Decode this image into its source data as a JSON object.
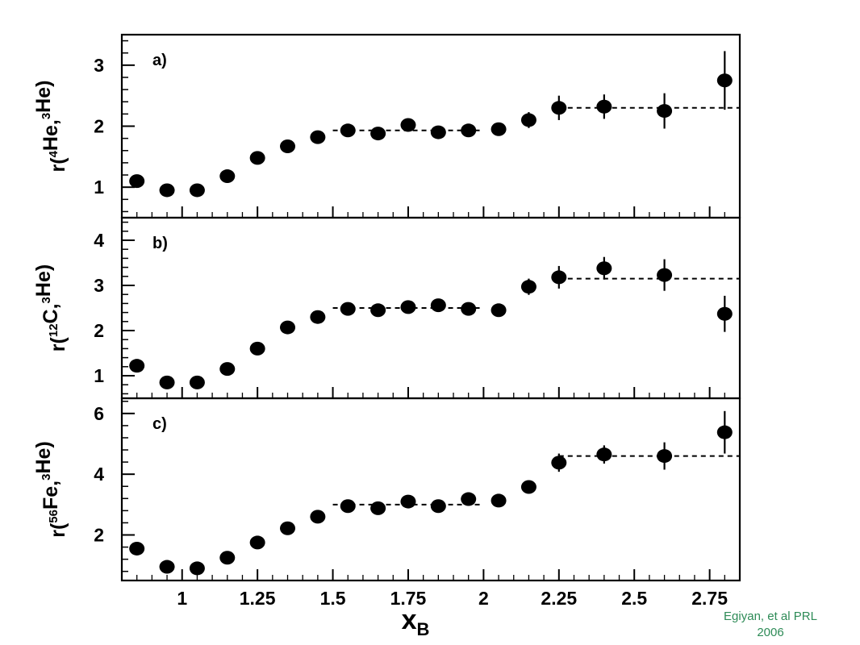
{
  "chart_data": [
    {
      "type": "scatter",
      "panel_label": "a)",
      "ylabel": {
        "prefix": "r(",
        "sup1": "4",
        "el1": "He,",
        "sup2": "3",
        "el2": "He)"
      },
      "ylim": [
        0.5,
        3.5
      ],
      "yticks": [
        1,
        2,
        3
      ],
      "xlim": [
        0.8,
        2.85
      ],
      "x": [
        0.85,
        0.95,
        1.05,
        1.15,
        1.25,
        1.35,
        1.45,
        1.55,
        1.65,
        1.75,
        1.85,
        1.95,
        2.05,
        2.15,
        2.25,
        2.4,
        2.6,
        2.8
      ],
      "y": [
        1.1,
        0.95,
        0.95,
        1.18,
        1.48,
        1.67,
        1.82,
        1.93,
        1.88,
        2.02,
        1.9,
        1.93,
        1.95,
        2.1,
        2.3,
        2.32,
        2.25,
        2.75
      ],
      "yerr": [
        0.03,
        0.03,
        0.03,
        0.03,
        0.04,
        0.04,
        0.04,
        0.05,
        0.05,
        0.06,
        0.06,
        0.06,
        0.07,
        0.13,
        0.2,
        0.2,
        0.29,
        0.48
      ],
      "fits": [
        {
          "x": [
            1.5,
            2.0
          ],
          "y": 1.93
        },
        {
          "x": [
            2.25,
            2.85
          ],
          "y": 2.3
        }
      ]
    },
    {
      "type": "scatter",
      "panel_label": "b)",
      "ylabel": {
        "prefix": "r(",
        "sup1": "12",
        "el1": "C,",
        "sup2": "3",
        "el2": "He)"
      },
      "ylim": [
        0.5,
        4.5
      ],
      "yticks": [
        1,
        2,
        3,
        4
      ],
      "xlim": [
        0.8,
        2.85
      ],
      "x": [
        0.85,
        0.95,
        1.05,
        1.15,
        1.25,
        1.35,
        1.45,
        1.55,
        1.65,
        1.75,
        1.85,
        1.95,
        2.05,
        2.15,
        2.25,
        2.4,
        2.6,
        2.8
      ],
      "y": [
        1.22,
        0.85,
        0.85,
        1.15,
        1.6,
        2.07,
        2.3,
        2.48,
        2.45,
        2.52,
        2.56,
        2.48,
        2.45,
        2.97,
        3.18,
        3.38,
        3.23,
        2.37
      ],
      "yerr": [
        0.03,
        0.03,
        0.03,
        0.04,
        0.05,
        0.05,
        0.06,
        0.06,
        0.06,
        0.07,
        0.08,
        0.08,
        0.09,
        0.18,
        0.25,
        0.25,
        0.35,
        0.4
      ],
      "fits": [
        {
          "x": [
            1.5,
            2.0
          ],
          "y": 2.5
        },
        {
          "x": [
            2.25,
            2.85
          ],
          "y": 3.15
        }
      ]
    },
    {
      "type": "scatter",
      "panel_label": "c)",
      "ylabel": {
        "prefix": "r(",
        "sup1": "56",
        "el1": "Fe,",
        "sup2": "3",
        "el2": "He)"
      },
      "ylim": [
        0.5,
        6.5
      ],
      "yticks": [
        2,
        4,
        6
      ],
      "xlim": [
        0.8,
        2.85
      ],
      "x": [
        0.85,
        0.95,
        1.05,
        1.15,
        1.25,
        1.35,
        1.45,
        1.55,
        1.65,
        1.75,
        1.85,
        1.95,
        2.05,
        2.15,
        2.25,
        2.4,
        2.6,
        2.8
      ],
      "y": [
        1.55,
        0.95,
        0.9,
        1.25,
        1.75,
        2.22,
        2.6,
        2.95,
        2.88,
        3.1,
        2.95,
        3.18,
        3.13,
        3.58,
        4.38,
        4.65,
        4.6,
        5.38
      ],
      "yerr": [
        0.05,
        0.05,
        0.05,
        0.06,
        0.07,
        0.08,
        0.09,
        0.1,
        0.1,
        0.11,
        0.12,
        0.12,
        0.13,
        0.2,
        0.3,
        0.3,
        0.45,
        0.7
      ],
      "fits": [
        {
          "x": [
            1.5,
            2.0
          ],
          "y": 3.0
        },
        {
          "x": [
            2.25,
            2.85
          ],
          "y": 4.6
        }
      ]
    }
  ],
  "x_axis": {
    "label_main": "x",
    "label_sub": "B",
    "ticks": [
      1,
      1.25,
      1.5,
      1.75,
      2,
      2.25,
      2.5,
      2.75
    ],
    "tick_labels": [
      "1",
      "1.25",
      "1.5",
      "1.75",
      "2",
      "2.25",
      "2.5",
      "2.75"
    ]
  },
  "credit": {
    "line1": "Egiyan, et al PRL",
    "line2": "2006"
  }
}
